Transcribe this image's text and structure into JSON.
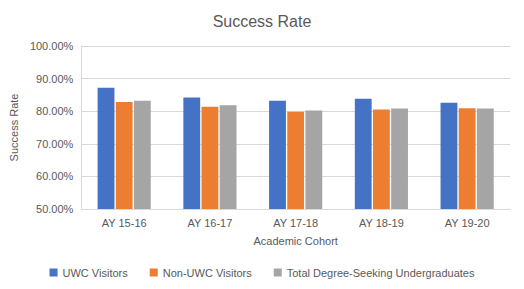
{
  "chart_data": {
    "type": "bar",
    "title": "Success Rate",
    "x_label": "Academic Cohort",
    "y_label": "Success Rate",
    "categories": [
      "AY 15-16",
      "AY 16-17",
      "AY 17-18",
      "AY 18-19",
      "AY 19-20"
    ],
    "series": [
      {
        "name": "UWC Visitors",
        "color": "#4472c4",
        "values": [
          87.2,
          84.2,
          83.2,
          83.8,
          82.6
        ]
      },
      {
        "name": "Non-UWC Visitors",
        "color": "#ed7d31",
        "values": [
          82.8,
          81.4,
          79.8,
          80.5,
          80.9
        ]
      },
      {
        "name": "Total Degree-Seeking Undergraduates",
        "color": "#a5a5a5",
        "values": [
          83.2,
          81.8,
          80.2,
          80.8,
          80.8
        ]
      }
    ],
    "ylim": [
      50,
      100
    ],
    "yticks": [
      {
        "value": 50,
        "label": "50.00%"
      },
      {
        "value": 60,
        "label": "60.00%"
      },
      {
        "value": 70,
        "label": "70.00%"
      },
      {
        "value": 80,
        "label": "80.00%"
      },
      {
        "value": 90,
        "label": "90.00%"
      },
      {
        "value": 100,
        "label": "100.00%"
      }
    ],
    "grid": true,
    "legend": "bottom"
  }
}
